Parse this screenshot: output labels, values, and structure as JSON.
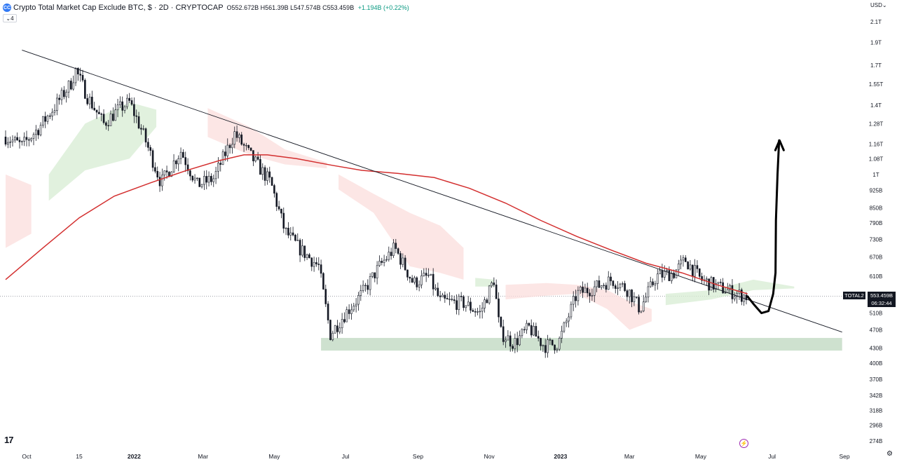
{
  "header": {
    "icon_text": "CC",
    "title": "Crypto Total Market Cap Exclude BTC, $ · 2D · CRYPTOCAP",
    "ohlc": "O552.672B H561.39B L547.574B C553.459B",
    "change": "+1.194B (+0.22%)",
    "indicator_count": "4"
  },
  "currency_selector": "USD",
  "price_tag": {
    "symbol": "TOTAL2",
    "value": "553.459B",
    "countdown": "06:32:44"
  },
  "colors": {
    "up": "#089981",
    "ma_line": "#d32f2f",
    "cloud_bull": "#d7ecd3",
    "cloud_bear": "#fbdedc",
    "support_zone": "#a5c9a8",
    "annotation": "#000000"
  },
  "icons": {
    "logo": "tradingview-logo-icon",
    "settings": "gear-icon",
    "alert": "lightning-icon"
  },
  "chart_data": {
    "type": "line",
    "y_scale": "log",
    "ylim": [
      260,
      2250
    ],
    "y_ticks": [
      {
        "label": "2.1T",
        "value": 2100
      },
      {
        "label": "1.9T",
        "value": 1900
      },
      {
        "label": "1.7T",
        "value": 1700
      },
      {
        "label": "1.55T",
        "value": 1550
      },
      {
        "label": "1.4T",
        "value": 1400
      },
      {
        "label": "1.28T",
        "value": 1280
      },
      {
        "label": "1.16T",
        "value": 1160
      },
      {
        "label": "1.08T",
        "value": 1080
      },
      {
        "label": "1T",
        "value": 1000
      },
      {
        "label": "925B",
        "value": 925
      },
      {
        "label": "850B",
        "value": 850
      },
      {
        "label": "790B",
        "value": 790
      },
      {
        "label": "730B",
        "value": 730
      },
      {
        "label": "670B",
        "value": 670
      },
      {
        "label": "610B",
        "value": 610
      },
      {
        "label": "510B",
        "value": 510
      },
      {
        "label": "470B",
        "value": 470
      },
      {
        "label": "430B",
        "value": 430
      },
      {
        "label": "400B",
        "value": 400
      },
      {
        "label": "370B",
        "value": 370
      },
      {
        "label": "342B",
        "value": 342
      },
      {
        "label": "318B",
        "value": 318
      },
      {
        "label": "296B",
        "value": 296
      },
      {
        "label": "274B",
        "value": 274
      }
    ],
    "x_ticks": [
      {
        "label": "Oct",
        "date": "2021-10-01",
        "bold": false
      },
      {
        "label": "15",
        "date": "2021-11-15",
        "bold": false
      },
      {
        "label": "2022",
        "date": "2022-01-01",
        "bold": true
      },
      {
        "label": "Mar",
        "date": "2022-03-01",
        "bold": false
      },
      {
        "label": "May",
        "date": "2022-05-01",
        "bold": false
      },
      {
        "label": "Jul",
        "date": "2022-07-01",
        "bold": false
      },
      {
        "label": "Sep",
        "date": "2022-09-01",
        "bold": false
      },
      {
        "label": "Nov",
        "date": "2022-11-01",
        "bold": false
      },
      {
        "label": "2023",
        "date": "2023-01-01",
        "bold": true
      },
      {
        "label": "Mar",
        "date": "2023-03-01",
        "bold": false
      },
      {
        "label": "May",
        "date": "2023-05-01",
        "bold": false
      },
      {
        "label": "Jul",
        "date": "2023-07-01",
        "bold": false
      },
      {
        "label": "Sep",
        "date": "2023-09-01",
        "bold": false
      }
    ],
    "price_path": [
      [
        "2021-09-13",
        1200
      ],
      [
        "2021-09-27",
        1150
      ],
      [
        "2021-10-11",
        1250
      ],
      [
        "2021-10-25",
        1390
      ],
      [
        "2021-11-08",
        1560
      ],
      [
        "2021-11-12",
        1660
      ],
      [
        "2021-11-22",
        1460
      ],
      [
        "2021-12-06",
        1280
      ],
      [
        "2021-12-20",
        1380
      ],
      [
        "2021-12-28",
        1420
      ],
      [
        "2022-01-08",
        1230
      ],
      [
        "2022-01-24",
        960
      ],
      [
        "2022-02-10",
        1120
      ],
      [
        "2022-02-24",
        950
      ],
      [
        "2022-03-10",
        980
      ],
      [
        "2022-03-28",
        1220
      ],
      [
        "2022-04-10",
        1100
      ],
      [
        "2022-04-28",
        960
      ],
      [
        "2022-05-10",
        760
      ],
      [
        "2022-05-22",
        700
      ],
      [
        "2022-06-08",
        640
      ],
      [
        "2022-06-18",
        460
      ],
      [
        "2022-07-01",
        510
      ],
      [
        "2022-07-15",
        560
      ],
      [
        "2022-07-30",
        640
      ],
      [
        "2022-08-12",
        700
      ],
      [
        "2022-08-28",
        590
      ],
      [
        "2022-09-10",
        610
      ],
      [
        "2022-09-20",
        540
      ],
      [
        "2022-10-10",
        535
      ],
      [
        "2022-10-24",
        510
      ],
      [
        "2022-11-05",
        600
      ],
      [
        "2022-11-10",
        465
      ],
      [
        "2022-11-22",
        440
      ],
      [
        "2022-12-05",
        475
      ],
      [
        "2022-12-18",
        435
      ],
      [
        "2022-12-30",
        440
      ],
      [
        "2023-01-15",
        560
      ],
      [
        "2023-02-01",
        580
      ],
      [
        "2023-02-14",
        600
      ],
      [
        "2023-02-28",
        570
      ],
      [
        "2023-03-10",
        520
      ],
      [
        "2023-03-24",
        610
      ],
      [
        "2023-04-08",
        620
      ],
      [
        "2023-04-18",
        660
      ],
      [
        "2023-05-01",
        600
      ],
      [
        "2023-05-15",
        580
      ],
      [
        "2023-06-01",
        560
      ],
      [
        "2023-06-10",
        553
      ]
    ],
    "moving_average": [
      [
        "2021-09-13",
        600
      ],
      [
        "2021-10-15",
        700
      ],
      [
        "2021-11-15",
        810
      ],
      [
        "2021-12-15",
        900
      ],
      [
        "2022-01-15",
        960
      ],
      [
        "2022-02-15",
        1020
      ],
      [
        "2022-03-15",
        1070
      ],
      [
        "2022-04-05",
        1100
      ],
      [
        "2022-04-25",
        1100
      ],
      [
        "2022-05-20",
        1080
      ],
      [
        "2022-06-20",
        1045
      ],
      [
        "2022-07-15",
        1020
      ],
      [
        "2022-08-15",
        1005
      ],
      [
        "2022-09-15",
        985
      ],
      [
        "2022-10-15",
        935
      ],
      [
        "2022-11-15",
        870
      ],
      [
        "2022-12-15",
        800
      ],
      [
        "2023-01-15",
        740
      ],
      [
        "2023-02-15",
        690
      ],
      [
        "2023-03-15",
        650
      ],
      [
        "2023-04-15",
        620
      ],
      [
        "2023-05-15",
        585
      ],
      [
        "2023-06-10",
        560
      ]
    ],
    "trendline": [
      [
        "2021-09-27",
        1830
      ],
      [
        "2023-08-30",
        465
      ]
    ],
    "support_zone": {
      "x_start": "2022-06-10",
      "x_end": "2023-08-30",
      "y_low": 425,
      "y_high": 452
    },
    "cloud_segments": [
      {
        "sentiment": "bear",
        "points": [
          [
            "2021-09-13",
            1000,
            700
          ],
          [
            "2021-10-05",
            950,
            750
          ]
        ]
      },
      {
        "sentiment": "bull",
        "points": [
          [
            "2021-10-20",
            1000,
            880
          ],
          [
            "2021-11-20",
            1280,
            1020
          ],
          [
            "2021-12-28",
            1420,
            1080
          ],
          [
            "2022-01-20",
            1370,
            1260
          ]
        ]
      },
      {
        "sentiment": "bear",
        "points": [
          [
            "2022-03-05",
            1380,
            1200
          ],
          [
            "2022-04-10",
            1260,
            1100
          ],
          [
            "2022-05-10",
            1130,
            1050
          ],
          [
            "2022-06-15",
            1060,
            1030
          ]
        ]
      },
      {
        "sentiment": "bear",
        "points": [
          [
            "2022-06-25",
            1000,
            930
          ],
          [
            "2022-07-25",
            910,
            830
          ],
          [
            "2022-08-25",
            830,
            640
          ],
          [
            "2022-09-20",
            780,
            620
          ],
          [
            "2022-10-10",
            700,
            600
          ]
        ]
      },
      {
        "sentiment": "bull",
        "points": [
          [
            "2022-10-20",
            605,
            580
          ],
          [
            "2022-11-05",
            600,
            580
          ]
        ]
      },
      {
        "sentiment": "bear",
        "points": [
          [
            "2022-11-15",
            585,
            545
          ],
          [
            "2022-12-20",
            590,
            555
          ],
          [
            "2023-01-15",
            585,
            560
          ],
          [
            "2023-02-10",
            570,
            520
          ],
          [
            "2023-03-01",
            540,
            470
          ],
          [
            "2023-03-20",
            520,
            490
          ]
        ]
      },
      {
        "sentiment": "bull",
        "points": [
          [
            "2023-04-01",
            560,
            530
          ],
          [
            "2023-05-10",
            570,
            545
          ],
          [
            "2023-06-15",
            600,
            570
          ],
          [
            "2023-07-20",
            580,
            575
          ]
        ]
      }
    ],
    "annotation_path": [
      [
        "2023-06-10",
        553
      ],
      [
        "2023-06-16",
        530
      ],
      [
        "2023-06-22",
        510
      ],
      [
        "2023-06-28",
        515
      ],
      [
        "2023-07-02",
        560
      ],
      [
        "2023-07-04",
        620
      ],
      [
        "2023-07-04",
        800
      ],
      [
        "2023-07-05",
        1000
      ],
      [
        "2023-07-06",
        1180
      ]
    ],
    "current_price": 553.459
  }
}
